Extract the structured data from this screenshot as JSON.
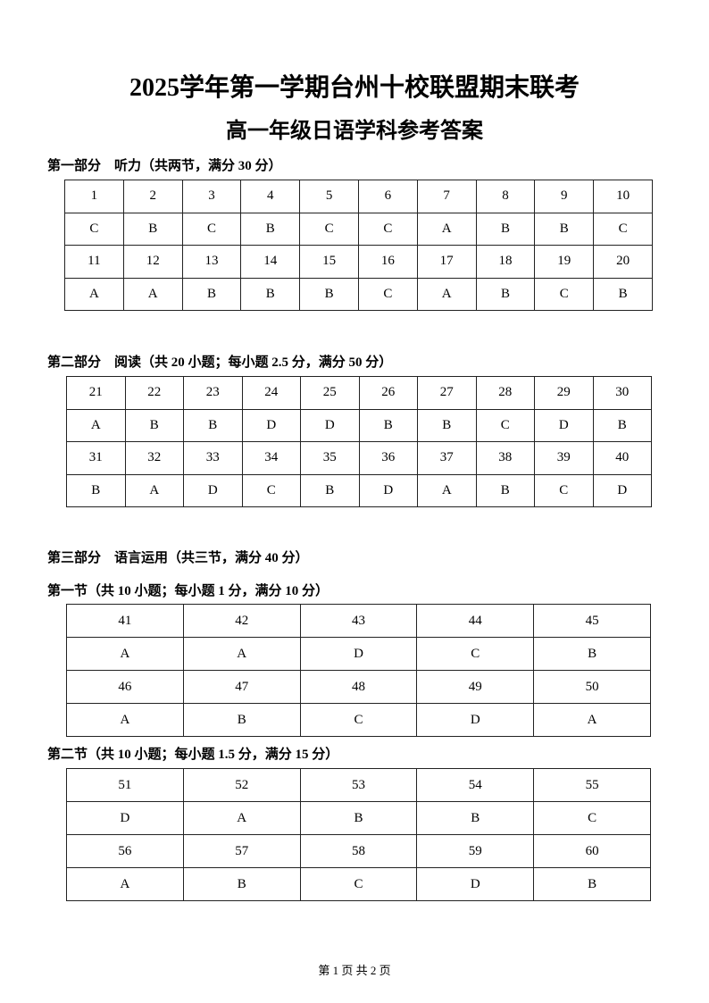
{
  "title": "2025学年第一学期台州十校联盟期末联考",
  "subtitle": "高一年级日语学科参考答案",
  "part1": {
    "heading": "第一部分　听力（共两节，满分 30 分）",
    "rows": [
      [
        "1",
        "2",
        "3",
        "4",
        "5",
        "6",
        "7",
        "8",
        "9",
        "10"
      ],
      [
        "C",
        "B",
        "C",
        "B",
        "C",
        "C",
        "A",
        "B",
        "B",
        "C"
      ],
      [
        "11",
        "12",
        "13",
        "14",
        "15",
        "16",
        "17",
        "18",
        "19",
        "20"
      ],
      [
        "A",
        "A",
        "B",
        "B",
        "B",
        "C",
        "A",
        "B",
        "C",
        "B"
      ]
    ]
  },
  "part2": {
    "heading": "第二部分　阅读（共 20 小题；每小题 2.5 分，满分 50 分）",
    "rows": [
      [
        "21",
        "22",
        "23",
        "24",
        "25",
        "26",
        "27",
        "28",
        "29",
        "30"
      ],
      [
        "A",
        "B",
        "B",
        "D",
        "D",
        "B",
        "B",
        "C",
        "D",
        "B"
      ],
      [
        "31",
        "32",
        "33",
        "34",
        "35",
        "36",
        "37",
        "38",
        "39",
        "40"
      ],
      [
        "B",
        "A",
        "D",
        "C",
        "B",
        "D",
        "A",
        "B",
        "C",
        "D"
      ]
    ]
  },
  "part3": {
    "heading": "第三部分　语言运用（共三节，满分 40 分）",
    "section1": {
      "heading": "第一节（共 10 小题；每小题 1 分，满分 10 分）",
      "rows": [
        [
          "41",
          "42",
          "43",
          "44",
          "45"
        ],
        [
          "A",
          "A",
          "D",
          "C",
          "B"
        ],
        [
          "46",
          "47",
          "48",
          "49",
          "50"
        ],
        [
          "A",
          "B",
          "C",
          "D",
          "A"
        ]
      ]
    },
    "section2": {
      "heading": "第二节（共 10 小题；每小题 1.5 分，满分 15 分）",
      "rows": [
        [
          "51",
          "52",
          "53",
          "54",
          "55"
        ],
        [
          "D",
          "A",
          "B",
          "B",
          "C"
        ],
        [
          "56",
          "57",
          "58",
          "59",
          "60"
        ],
        [
          "A",
          "B",
          "C",
          "D",
          "B"
        ]
      ]
    }
  },
  "footer": "第 1 页 共 2 页"
}
